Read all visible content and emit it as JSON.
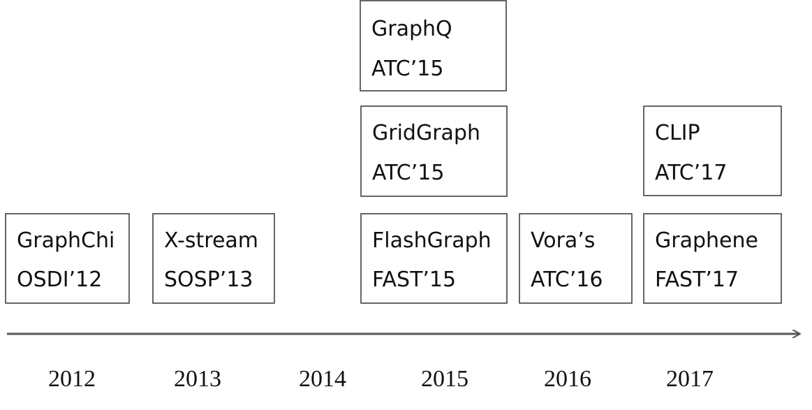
{
  "years": [
    "2012",
    "2013",
    "2014",
    "2015",
    "2016",
    "2017"
  ],
  "papers": [
    {
      "name": "GraphChi",
      "venue": "OSDI’12"
    },
    {
      "name": "X-stream",
      "venue": "SOSP’13"
    },
    {
      "name": "GraphQ",
      "venue": "ATC’15"
    },
    {
      "name": "GridGraph",
      "venue": "ATC’15"
    },
    {
      "name": "FlashGraph",
      "venue": "FAST’15"
    },
    {
      "name": "Vora’s",
      "venue": "ATC’16"
    },
    {
      "name": "CLIP",
      "venue": "ATC’17"
    },
    {
      "name": "Graphene",
      "venue": "FAST’17"
    }
  ]
}
